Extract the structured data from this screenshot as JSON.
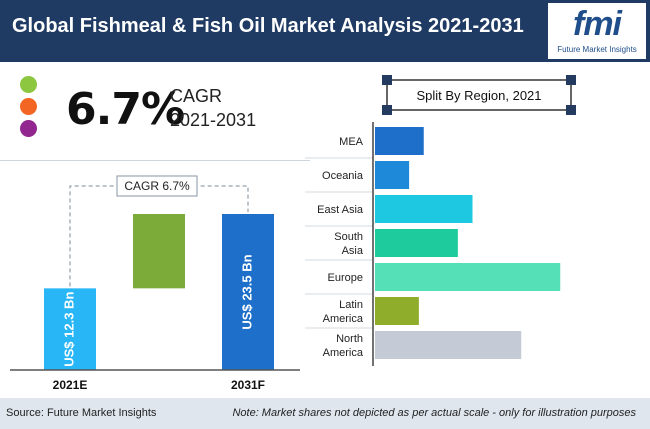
{
  "header": {
    "title": "Global Fishmeal & Fish Oil Market Analysis 2021-2031"
  },
  "logo": {
    "text": "fmi",
    "subtitle": "Future Market Insights"
  },
  "cagr": {
    "value": "6.7%",
    "label": "CAGR",
    "period": "2021-2031"
  },
  "colors": {
    "green_dot": "#8dc63f",
    "orange_dot": "#f26522",
    "purple_dot": "#92278f",
    "header": "#1f3a63"
  },
  "chart_data": [
    {
      "type": "bar",
      "categories": [
        "2021E",
        "2031F"
      ],
      "values": [
        12.3,
        23.5
      ],
      "value_labels": [
        "US$ 12.3 Bn",
        "US$ 23.5 Bn"
      ],
      "cagr_annotation": "CAGR 6.7%",
      "colors": [
        "#29b6f6",
        "#1e6fc9"
      ],
      "increment_color": "#7cab3a",
      "ylim": [
        0,
        23.5
      ]
    },
    {
      "type": "bar",
      "orientation": "horizontal",
      "title": "Split By Region, 2021",
      "categories": [
        "MEA",
        "Oceania",
        "East Asia",
        "South Asia",
        "Europe",
        "Latin America",
        "North America"
      ],
      "category_lines": [
        [
          "MEA"
        ],
        [
          "Oceania"
        ],
        [
          "East Asia"
        ],
        [
          "South",
          "Asia"
        ],
        [
          "Europe"
        ],
        [
          "Latin",
          "America"
        ],
        [
          "North",
          "America"
        ]
      ],
      "values": [
        5,
        3.5,
        10,
        8.5,
        19,
        4.5,
        15
      ],
      "colors": [
        "#1e6fc9",
        "#1e88d9",
        "#1ec8e0",
        "#1ecb9c",
        "#55e0b8",
        "#8fad2a",
        "#c4cad6"
      ],
      "xlim": [
        0,
        20
      ]
    }
  ],
  "footer": {
    "source": "Source: Future Market Insights",
    "note": "Note: Market shares not depicted as per actual scale - only for illustration purposes"
  }
}
